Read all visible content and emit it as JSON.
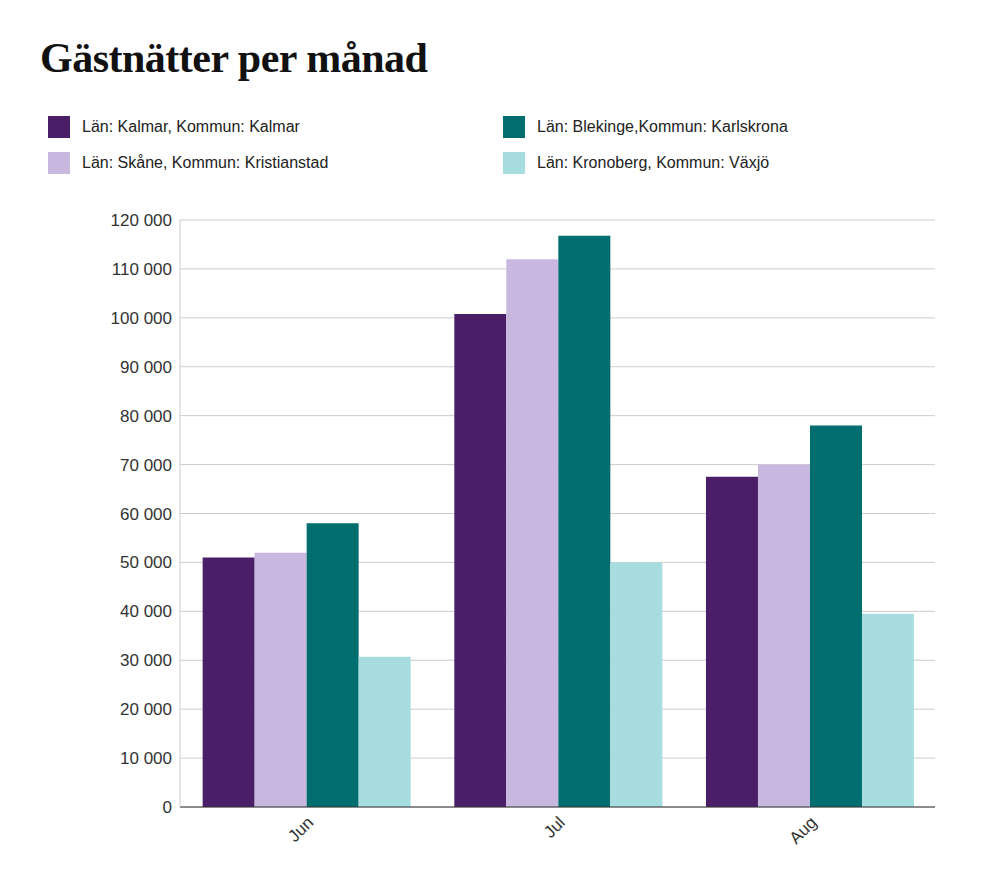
{
  "chart_data": {
    "type": "bar",
    "title": "Gästnätter per månad",
    "categories": [
      "Jun",
      "Jul",
      "Aug"
    ],
    "series": [
      {
        "name": "Län: Kalmar, Kommun: Kalmar",
        "color": "#4b1f68",
        "values": [
          51000,
          100800,
          67500
        ]
      },
      {
        "name": "Län: Skåne, Kommun: Kristianstad",
        "color": "#c8b8e0",
        "values": [
          52000,
          112000,
          70000
        ]
      },
      {
        "name": "Län: Blekinge,Kommun: Karlskrona",
        "color": "#006e6e",
        "values": [
          58000,
          116800,
          78000
        ]
      },
      {
        "name": "Län: Kronoberg, Kommun: Växjö",
        "color": "#a8dde0",
        "values": [
          30700,
          50000,
          39500
        ]
      }
    ],
    "ylim": [
      0,
      120000
    ],
    "yticks": [
      0,
      {
        "value": 10000,
        "label": "10 000"
      },
      {
        "value": 20000,
        "label": "20 000"
      },
      {
        "value": 30000,
        "label": "30 000"
      },
      {
        "value": 40000,
        "label": "40 000"
      },
      {
        "value": 50000,
        "label": "50 000"
      },
      {
        "value": 60000,
        "label": "60 000"
      },
      {
        "value": 70000,
        "label": "70 000"
      },
      {
        "value": 80000,
        "label": "80 000"
      },
      {
        "value": 90000,
        "label": "90 000"
      },
      {
        "value": 100000,
        "label": "100 000"
      },
      {
        "value": 110000,
        "label": "110 000"
      },
      {
        "value": 120000,
        "label": "120 000"
      }
    ],
    "grid": true
  }
}
